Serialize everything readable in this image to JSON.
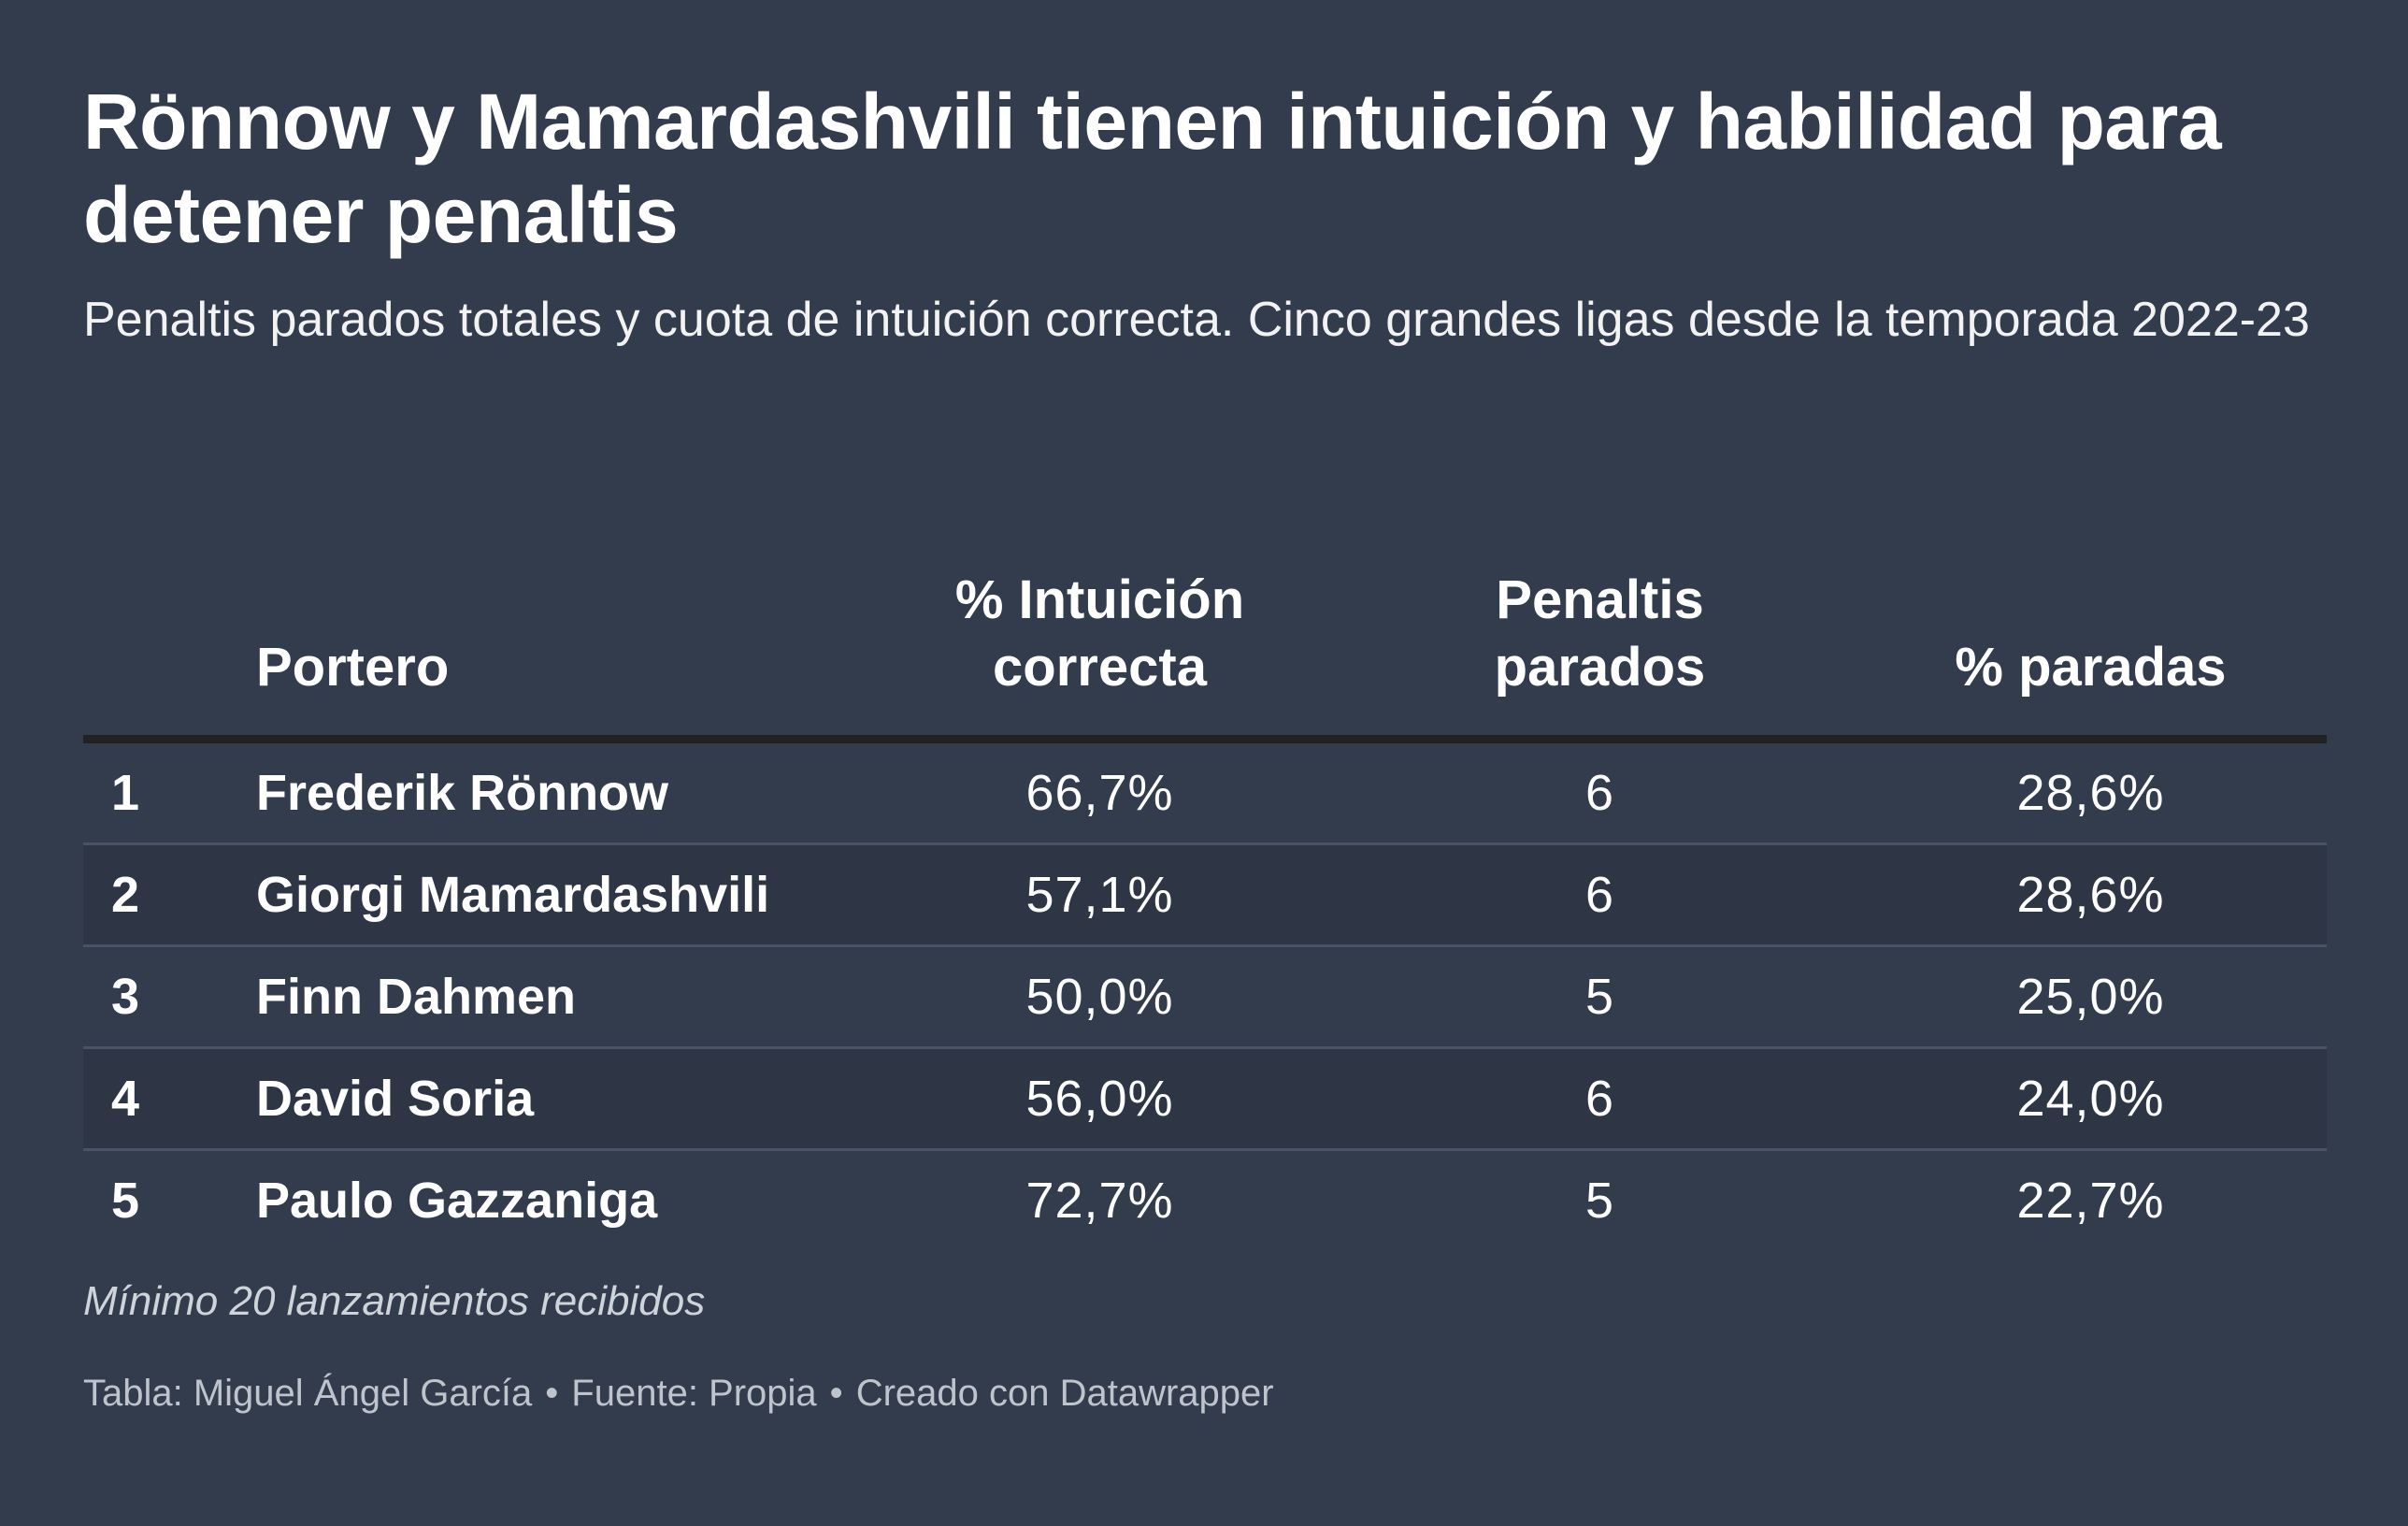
{
  "chart_data": {
    "type": "table",
    "title": "Rönnow y Mamardashvili tienen intuición y habilidad para detener penaltis",
    "subtitle": "Penaltis parados totales y cuota de intuición correcta. Cinco grandes ligas desde la temporada 2022-23",
    "columns": {
      "rank": "",
      "name": "Portero",
      "intuicion": "% Intuición correcta",
      "penaltis": "Penaltis parados",
      "paradas": "% paradas"
    },
    "rows": [
      {
        "rank": "1",
        "name": "Frederik Rönnow",
        "intuicion": "66,7%",
        "penaltis": "6",
        "paradas": "28,6%"
      },
      {
        "rank": "2",
        "name": "Giorgi Mamardashvili",
        "intuicion": "57,1%",
        "penaltis": "6",
        "paradas": "28,6%"
      },
      {
        "rank": "3",
        "name": "Finn Dahmen",
        "intuicion": "50,0%",
        "penaltis": "5",
        "paradas": "25,0%"
      },
      {
        "rank": "4",
        "name": "David Soria",
        "intuicion": "56,0%",
        "penaltis": "6",
        "paradas": "24,0%"
      },
      {
        "rank": "5",
        "name": "Paulo Gazzaniga",
        "intuicion": "72,7%",
        "penaltis": "5",
        "paradas": "22,7%"
      }
    ],
    "note": "Mínimo 20 lanzamientos recibidos",
    "footer": {
      "credit": "Tabla: Miguel Ángel García",
      "source": "Fuente: Propia",
      "tool": "Creado con Datawrapper",
      "separator": "•"
    },
    "colors": {
      "background": "#333c4d",
      "alt_row": "#2e3646",
      "header_rule": "#222222",
      "row_rule": "#4a5365"
    }
  }
}
